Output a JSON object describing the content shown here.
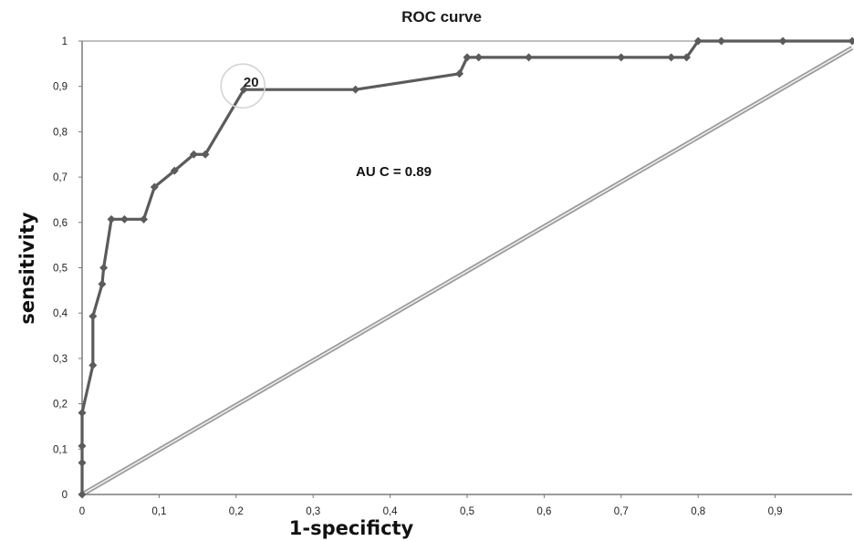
{
  "chart_data": {
    "type": "line",
    "title": "ROC curve",
    "xlabel": "1-specificty",
    "ylabel": "sensitivity",
    "xlim": [
      0,
      1
    ],
    "ylim": [
      0,
      1
    ],
    "x_ticks": [
      "0",
      "0,1",
      "0,2",
      "0,3",
      "0,4",
      "0,5",
      "0,6",
      "0,7",
      "0,8",
      "0,9"
    ],
    "y_ticks": [
      "0",
      "0,1",
      "0,2",
      "0,3",
      "0,4",
      "0,5",
      "0,6",
      "0,7",
      "0,8",
      "0,9",
      "1"
    ],
    "grid": false,
    "annotation": "AU C = 0.89",
    "callout_label": "20",
    "callout_point": {
      "x": 0.21,
      "y": 0.893
    },
    "series": [
      {
        "color": "#5b5b5b",
        "x": [
          0,
          0,
          0,
          0,
          0.014,
          0.014,
          0.026,
          0.028,
          0.038,
          0.055,
          0.08,
          0.094,
          0.12,
          0.145,
          0.16,
          0.21,
          0.355,
          0.49,
          0.5,
          0.515,
          0.58,
          0.7,
          0.765,
          0.785,
          0.8,
          0.83,
          0.91,
          1.0
        ],
        "y": [
          0,
          0.07,
          0.107,
          0.18,
          0.285,
          0.393,
          0.464,
          0.5,
          0.607,
          0.607,
          0.607,
          0.678,
          0.714,
          0.75,
          0.75,
          0.893,
          0.893,
          0.928,
          0.964,
          0.964,
          0.964,
          0.964,
          0.964,
          0.964,
          1.0,
          1.0,
          1.0,
          1.0
        ]
      },
      {
        "color": "#8a8a8a",
        "x": [
          0,
          1
        ],
        "y": [
          0,
          0.985
        ]
      }
    ]
  }
}
